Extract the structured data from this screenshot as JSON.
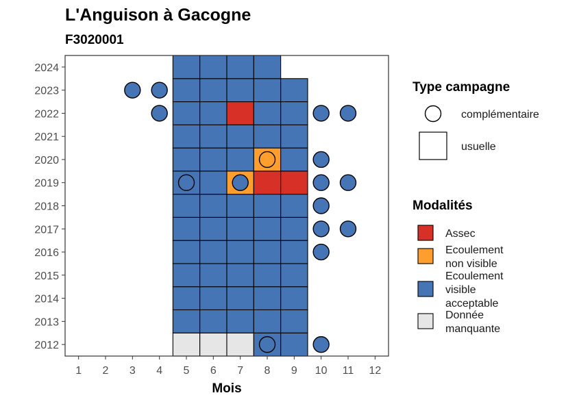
{
  "chart_data": {
    "type": "heatmap",
    "title": "L'Anguison à Gacogne",
    "subtitle": "F3020001",
    "xlabel": "Mois",
    "ylabel": "",
    "x_ticks": [
      1,
      2,
      3,
      4,
      5,
      6,
      7,
      8,
      9,
      10,
      11,
      12
    ],
    "y_ticks": [
      2012,
      2013,
      2014,
      2015,
      2016,
      2017,
      2018,
      2019,
      2020,
      2021,
      2022,
      2023,
      2024
    ],
    "xlim": [
      0.5,
      12.5
    ],
    "ylim": [
      2011.5,
      2024.5
    ],
    "grid": false,
    "legend_position": "right",
    "colors": {
      "Assec": "#d73027",
      "Ecoulement non visible": "#fd9e2e",
      "Ecoulement visible acceptable": "#4575b4",
      "Donnée manquante": "#e6e6e6"
    },
    "legend_type": {
      "title": "Type campagne",
      "items": [
        {
          "key": "complementaire",
          "label": "complémentaire",
          "shape": "circle"
        },
        {
          "key": "usuelle",
          "label": "usuelle",
          "shape": "square"
        }
      ]
    },
    "legend_modalites": {
      "title": "Modalités",
      "items": [
        {
          "key": "Assec",
          "lines": [
            "Assec"
          ]
        },
        {
          "key": "Ecoulement non visible",
          "lines": [
            "Ecoulement",
            "non visible"
          ]
        },
        {
          "key": "Ecoulement visible acceptable",
          "lines": [
            "Ecoulement",
            "visible",
            "acceptable"
          ]
        },
        {
          "key": "Donnée manquante",
          "lines": [
            "Donnée",
            "manquante"
          ]
        }
      ]
    },
    "usuelle": [
      {
        "year": 2012,
        "month": 5,
        "value": "Donnée manquante"
      },
      {
        "year": 2012,
        "month": 6,
        "value": "Donnée manquante"
      },
      {
        "year": 2012,
        "month": 7,
        "value": "Donnée manquante"
      },
      {
        "year": 2012,
        "month": 8,
        "value": "Ecoulement visible acceptable"
      },
      {
        "year": 2012,
        "month": 9,
        "value": "Ecoulement visible acceptable"
      },
      {
        "year": 2013,
        "month": 5,
        "value": "Ecoulement visible acceptable"
      },
      {
        "year": 2013,
        "month": 6,
        "value": "Ecoulement visible acceptable"
      },
      {
        "year": 2013,
        "month": 7,
        "value": "Ecoulement visible acceptable"
      },
      {
        "year": 2013,
        "month": 8,
        "value": "Ecoulement visible acceptable"
      },
      {
        "year": 2013,
        "month": 9,
        "value": "Ecoulement visible acceptable"
      },
      {
        "year": 2014,
        "month": 5,
        "value": "Ecoulement visible acceptable"
      },
      {
        "year": 2014,
        "month": 6,
        "value": "Ecoulement visible acceptable"
      },
      {
        "year": 2014,
        "month": 7,
        "value": "Ecoulement visible acceptable"
      },
      {
        "year": 2014,
        "month": 8,
        "value": "Ecoulement visible acceptable"
      },
      {
        "year": 2014,
        "month": 9,
        "value": "Ecoulement visible acceptable"
      },
      {
        "year": 2015,
        "month": 5,
        "value": "Ecoulement visible acceptable"
      },
      {
        "year": 2015,
        "month": 6,
        "value": "Ecoulement visible acceptable"
      },
      {
        "year": 2015,
        "month": 7,
        "value": "Ecoulement visible acceptable"
      },
      {
        "year": 2015,
        "month": 8,
        "value": "Ecoulement visible acceptable"
      },
      {
        "year": 2015,
        "month": 9,
        "value": "Ecoulement visible acceptable"
      },
      {
        "year": 2016,
        "month": 5,
        "value": "Ecoulement visible acceptable"
      },
      {
        "year": 2016,
        "month": 6,
        "value": "Ecoulement visible acceptable"
      },
      {
        "year": 2016,
        "month": 7,
        "value": "Ecoulement visible acceptable"
      },
      {
        "year": 2016,
        "month": 8,
        "value": "Ecoulement visible acceptable"
      },
      {
        "year": 2016,
        "month": 9,
        "value": "Ecoulement visible acceptable"
      },
      {
        "year": 2017,
        "month": 5,
        "value": "Ecoulement visible acceptable"
      },
      {
        "year": 2017,
        "month": 6,
        "value": "Ecoulement visible acceptable"
      },
      {
        "year": 2017,
        "month": 7,
        "value": "Ecoulement visible acceptable"
      },
      {
        "year": 2017,
        "month": 8,
        "value": "Ecoulement visible acceptable"
      },
      {
        "year": 2017,
        "month": 9,
        "value": "Ecoulement visible acceptable"
      },
      {
        "year": 2018,
        "month": 5,
        "value": "Ecoulement visible acceptable"
      },
      {
        "year": 2018,
        "month": 6,
        "value": "Ecoulement visible acceptable"
      },
      {
        "year": 2018,
        "month": 7,
        "value": "Ecoulement visible acceptable"
      },
      {
        "year": 2018,
        "month": 8,
        "value": "Ecoulement visible acceptable"
      },
      {
        "year": 2018,
        "month": 9,
        "value": "Ecoulement visible acceptable"
      },
      {
        "year": 2019,
        "month": 5,
        "value": "Ecoulement visible acceptable"
      },
      {
        "year": 2019,
        "month": 6,
        "value": "Ecoulement visible acceptable"
      },
      {
        "year": 2019,
        "month": 7,
        "value": "Ecoulement non visible"
      },
      {
        "year": 2019,
        "month": 8,
        "value": "Assec"
      },
      {
        "year": 2019,
        "month": 9,
        "value": "Assec"
      },
      {
        "year": 2020,
        "month": 5,
        "value": "Ecoulement visible acceptable"
      },
      {
        "year": 2020,
        "month": 6,
        "value": "Ecoulement visible acceptable"
      },
      {
        "year": 2020,
        "month": 7,
        "value": "Ecoulement visible acceptable"
      },
      {
        "year": 2020,
        "month": 8,
        "value": "Ecoulement non visible"
      },
      {
        "year": 2020,
        "month": 9,
        "value": "Ecoulement visible acceptable"
      },
      {
        "year": 2021,
        "month": 5,
        "value": "Ecoulement visible acceptable"
      },
      {
        "year": 2021,
        "month": 6,
        "value": "Ecoulement visible acceptable"
      },
      {
        "year": 2021,
        "month": 7,
        "value": "Ecoulement visible acceptable"
      },
      {
        "year": 2021,
        "month": 8,
        "value": "Ecoulement visible acceptable"
      },
      {
        "year": 2021,
        "month": 9,
        "value": "Ecoulement visible acceptable"
      },
      {
        "year": 2022,
        "month": 5,
        "value": "Ecoulement visible acceptable"
      },
      {
        "year": 2022,
        "month": 6,
        "value": "Ecoulement visible acceptable"
      },
      {
        "year": 2022,
        "month": 7,
        "value": "Assec"
      },
      {
        "year": 2022,
        "month": 8,
        "value": "Ecoulement visible acceptable"
      },
      {
        "year": 2022,
        "month": 9,
        "value": "Ecoulement visible acceptable"
      },
      {
        "year": 2023,
        "month": 5,
        "value": "Ecoulement visible acceptable"
      },
      {
        "year": 2023,
        "month": 6,
        "value": "Ecoulement visible acceptable"
      },
      {
        "year": 2023,
        "month": 7,
        "value": "Ecoulement visible acceptable"
      },
      {
        "year": 2023,
        "month": 8,
        "value": "Ecoulement visible acceptable"
      },
      {
        "year": 2023,
        "month": 9,
        "value": "Ecoulement visible acceptable"
      },
      {
        "year": 2024,
        "month": 5,
        "value": "Ecoulement visible acceptable"
      },
      {
        "year": 2024,
        "month": 6,
        "value": "Ecoulement visible acceptable"
      },
      {
        "year": 2024,
        "month": 7,
        "value": "Ecoulement visible acceptable"
      },
      {
        "year": 2024,
        "month": 8,
        "value": "Ecoulement visible acceptable"
      }
    ],
    "complementaire": [
      {
        "year": 2012,
        "month": 8,
        "value": "Ecoulement visible acceptable"
      },
      {
        "year": 2012,
        "month": 10,
        "value": "Ecoulement visible acceptable"
      },
      {
        "year": 2016,
        "month": 10,
        "value": "Ecoulement visible acceptable"
      },
      {
        "year": 2017,
        "month": 10,
        "value": "Ecoulement visible acceptable"
      },
      {
        "year": 2017,
        "month": 11,
        "value": "Ecoulement visible acceptable"
      },
      {
        "year": 2018,
        "month": 10,
        "value": "Ecoulement visible acceptable"
      },
      {
        "year": 2019,
        "month": 5,
        "value": "Ecoulement visible acceptable"
      },
      {
        "year": 2019,
        "month": 7,
        "value": "Ecoulement visible acceptable"
      },
      {
        "year": 2019,
        "month": 10,
        "value": "Ecoulement visible acceptable"
      },
      {
        "year": 2019,
        "month": 11,
        "value": "Ecoulement visible acceptable"
      },
      {
        "year": 2020,
        "month": 8,
        "value": "Ecoulement non visible"
      },
      {
        "year": 2020,
        "month": 10,
        "value": "Ecoulement visible acceptable"
      },
      {
        "year": 2022,
        "month": 4,
        "value": "Ecoulement visible acceptable"
      },
      {
        "year": 2022,
        "month": 10,
        "value": "Ecoulement visible acceptable"
      },
      {
        "year": 2022,
        "month": 11,
        "value": "Ecoulement visible acceptable"
      },
      {
        "year": 2023,
        "month": 3,
        "value": "Ecoulement visible acceptable"
      },
      {
        "year": 2023,
        "month": 4,
        "value": "Ecoulement visible acceptable"
      }
    ]
  }
}
